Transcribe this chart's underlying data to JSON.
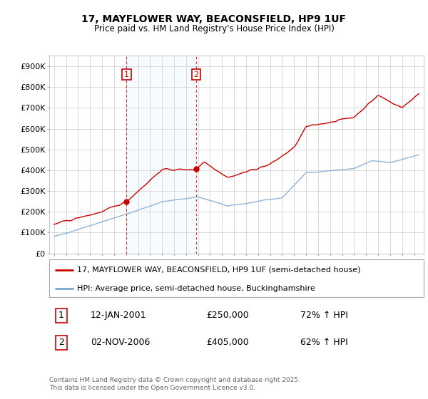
{
  "title_line1": "17, MAYFLOWER WAY, BEACONSFIELD, HP9 1UF",
  "title_line2": "Price paid vs. HM Land Registry's House Price Index (HPI)",
  "ylim": [
    0,
    950000
  ],
  "yticks": [
    0,
    100000,
    200000,
    300000,
    400000,
    500000,
    600000,
    700000,
    800000,
    900000
  ],
  "ytick_labels": [
    "£0",
    "£100K",
    "£200K",
    "£300K",
    "£400K",
    "£500K",
    "£600K",
    "£700K",
    "£800K",
    "£900K"
  ],
  "red_line_color": "#cc0000",
  "blue_line_color": "#7aa8d2",
  "vline_color": "#cc0000",
  "purchase1_year": 2001.04,
  "purchase1_price": 250000,
  "purchase2_year": 2006.84,
  "purchase2_price": 405000,
  "legend1": "17, MAYFLOWER WAY, BEACONSFIELD, HP9 1UF (semi-detached house)",
  "legend2": "HPI: Average price, semi-detached house, Buckinghamshire",
  "annotation1_label": "1",
  "annotation1_date": "12-JAN-2001",
  "annotation1_price": "£250,000",
  "annotation1_hpi": "72% ↑ HPI",
  "annotation2_label": "2",
  "annotation2_date": "02-NOV-2006",
  "annotation2_price": "£405,000",
  "annotation2_hpi": "62% ↑ HPI",
  "footer": "Contains HM Land Registry data © Crown copyright and database right 2025.\nThis data is licensed under the Open Government Licence v3.0.",
  "background_color": "#ffffff",
  "grid_color": "#cccccc"
}
